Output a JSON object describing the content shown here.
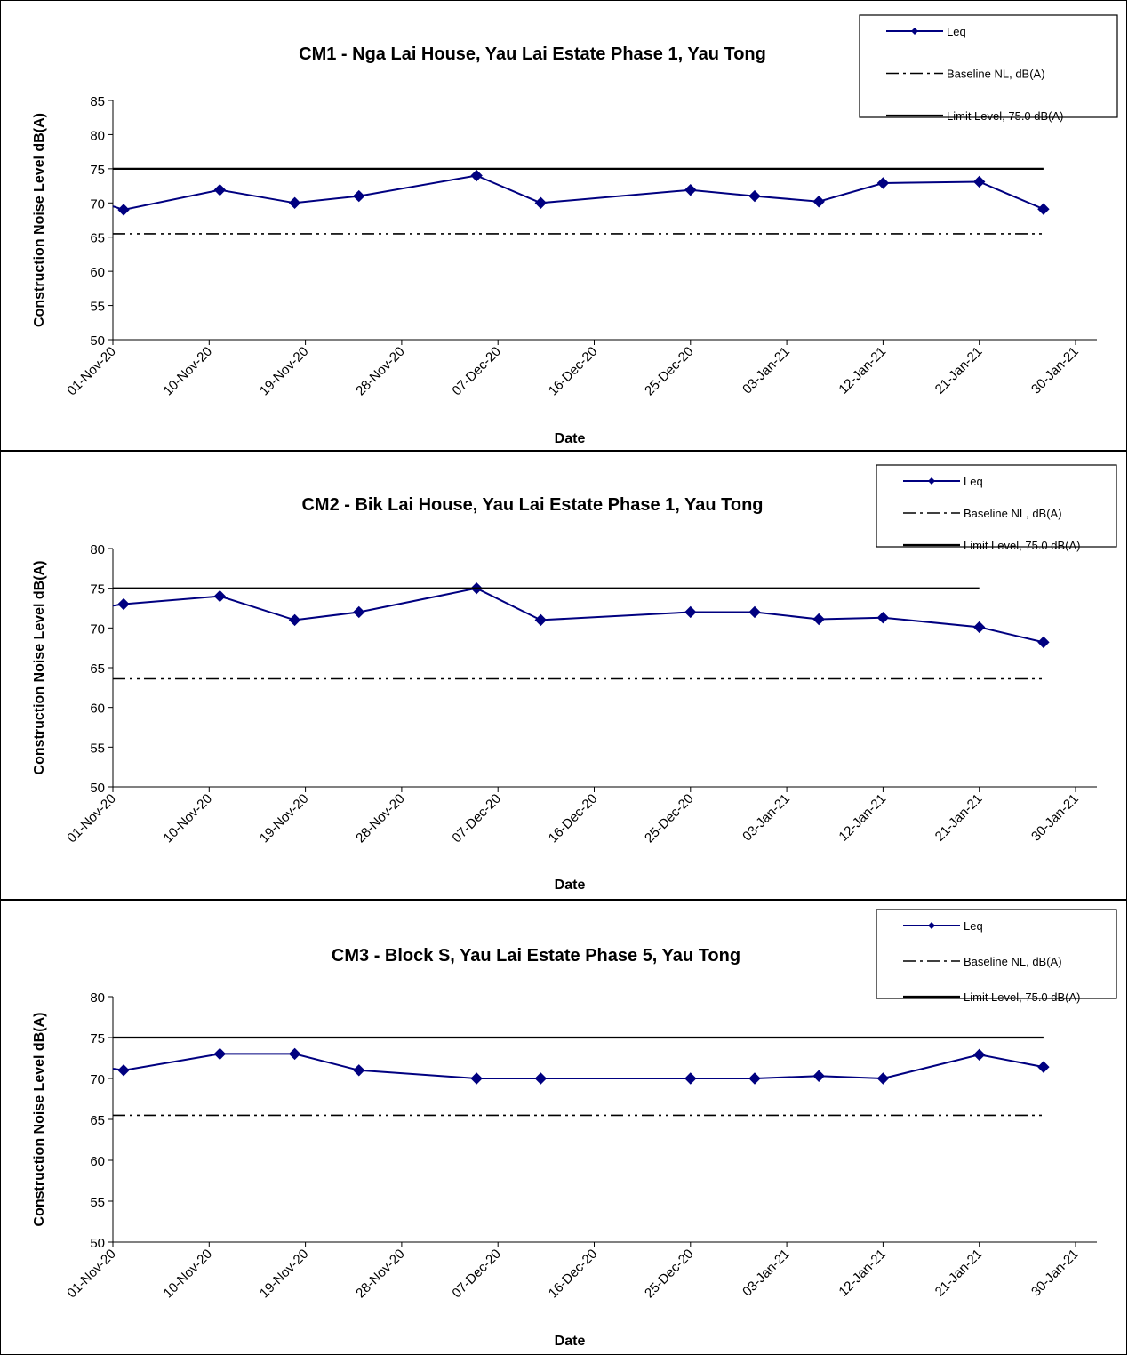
{
  "colors": {
    "leq": "#000080",
    "baseline": "#000000",
    "limit": "#000000",
    "frame": "#000000"
  },
  "chart_data": [
    {
      "type": "line",
      "title": "CM1 - Nga Lai House, Yau Lai Estate Phase 1, Yau Tong",
      "xlabel": "Date",
      "ylabel": "Construction Noise Level  dB(A)",
      "ylim": [
        50,
        85
      ],
      "yticks": [
        50,
        55,
        60,
        65,
        70,
        75,
        80,
        85
      ],
      "xlim": [
        "2020-11-01",
        "2021-01-30"
      ],
      "xticks": [
        "01-Nov-20",
        "10-Nov-20",
        "19-Nov-20",
        "28-Nov-20",
        "07-Dec-20",
        "16-Dec-20",
        "25-Dec-20",
        "03-Jan-21",
        "12-Jan-21",
        "21-Jan-21",
        "30-Jan-21"
      ],
      "grid": false,
      "legend_position": "top-right",
      "series": [
        {
          "name": "Leq",
          "style": "line-diamond",
          "x": [
            "2020-10-31",
            "2020-11-02",
            "2020-11-11",
            "2020-11-18",
            "2020-11-24",
            "2020-12-05",
            "2020-12-11",
            "2020-12-25",
            "2020-12-31",
            "2021-01-06",
            "2021-01-12",
            "2021-01-21",
            "2021-01-27"
          ],
          "values": [
            69.5,
            69.0,
            71.9,
            70.0,
            71.0,
            74.0,
            70.0,
            71.9,
            71.0,
            70.2,
            72.9,
            73.1,
            69.1
          ]
        },
        {
          "name": "Baseline NL, dB(A)",
          "style": "dash-dot",
          "x": [
            "2020-11-01",
            "2021-01-27"
          ],
          "values": [
            65.5,
            65.5
          ]
        },
        {
          "name": "Limit Level, 75.0 dB(A)",
          "style": "solid",
          "x": [
            "2020-11-01",
            "2021-01-27"
          ],
          "values": [
            75.0,
            75.0
          ]
        }
      ]
    },
    {
      "type": "line",
      "title": "CM2 - Bik Lai House, Yau Lai Estate Phase 1, Yau Tong",
      "xlabel": "Date",
      "ylabel": "Construction Noise Level  dB(A)",
      "ylim": [
        50,
        80
      ],
      "yticks": [
        50,
        55,
        60,
        65,
        70,
        75,
        80
      ],
      "xlim": [
        "2020-11-01",
        "2021-01-30"
      ],
      "xticks": [
        "01-Nov-20",
        "10-Nov-20",
        "19-Nov-20",
        "28-Nov-20",
        "07-Dec-20",
        "16-Dec-20",
        "25-Dec-20",
        "03-Jan-21",
        "12-Jan-21",
        "21-Jan-21",
        "30-Jan-21"
      ],
      "grid": false,
      "legend_position": "top-right",
      "series": [
        {
          "name": "Leq",
          "style": "line-diamond",
          "x": [
            "2020-10-31",
            "2020-11-02",
            "2020-11-11",
            "2020-11-18",
            "2020-11-24",
            "2020-12-05",
            "2020-12-11",
            "2020-12-25",
            "2020-12-31",
            "2021-01-06",
            "2021-01-12",
            "2021-01-21",
            "2021-01-27"
          ],
          "values": [
            72.8,
            73.0,
            74.0,
            71.0,
            72.0,
            75.0,
            71.0,
            72.0,
            72.0,
            71.1,
            71.3,
            70.1,
            68.2
          ]
        },
        {
          "name": "Baseline NL, dB(A)",
          "style": "dash-dot",
          "x": [
            "2020-11-01",
            "2021-01-27"
          ],
          "values": [
            63.6,
            63.6
          ]
        },
        {
          "name": "Limit Level, 75.0 dB(A)",
          "style": "solid",
          "x": [
            "2020-11-01",
            "2021-01-21"
          ],
          "values": [
            75.0,
            75.0
          ]
        }
      ]
    },
    {
      "type": "line",
      "title": "CM3 - Block S, Yau Lai Estate Phase 5, Yau Tong",
      "xlabel": "Date",
      "ylabel": "Construction Noise Level  dB(A)",
      "ylim": [
        50,
        80
      ],
      "yticks": [
        50,
        55,
        60,
        65,
        70,
        75,
        80
      ],
      "xlim": [
        "2020-11-01",
        "2021-01-30"
      ],
      "xticks": [
        "01-Nov-20",
        "10-Nov-20",
        "19-Nov-20",
        "28-Nov-20",
        "07-Dec-20",
        "16-Dec-20",
        "25-Dec-20",
        "03-Jan-21",
        "12-Jan-21",
        "21-Jan-21",
        "30-Jan-21"
      ],
      "grid": false,
      "legend_position": "top-right",
      "series": [
        {
          "name": "Leq",
          "style": "line-diamond",
          "x": [
            "2020-10-31",
            "2020-11-02",
            "2020-11-11",
            "2020-11-18",
            "2020-11-24",
            "2020-12-05",
            "2020-12-11",
            "2020-12-25",
            "2020-12-31",
            "2021-01-06",
            "2021-01-12",
            "2021-01-21",
            "2021-01-27"
          ],
          "values": [
            71.2,
            71.0,
            73.0,
            73.0,
            71.0,
            70.0,
            70.0,
            70.0,
            70.0,
            70.3,
            70.0,
            72.9,
            71.4
          ]
        },
        {
          "name": "Baseline NL, dB(A)",
          "style": "dash-dot",
          "x": [
            "2020-11-01",
            "2021-01-27"
          ],
          "values": [
            65.5,
            65.5
          ]
        },
        {
          "name": "Limit Level, 75.0 dB(A)",
          "style": "solid",
          "x": [
            "2020-11-01",
            "2021-01-27"
          ],
          "values": [
            75.0,
            75.0
          ]
        }
      ]
    }
  ]
}
